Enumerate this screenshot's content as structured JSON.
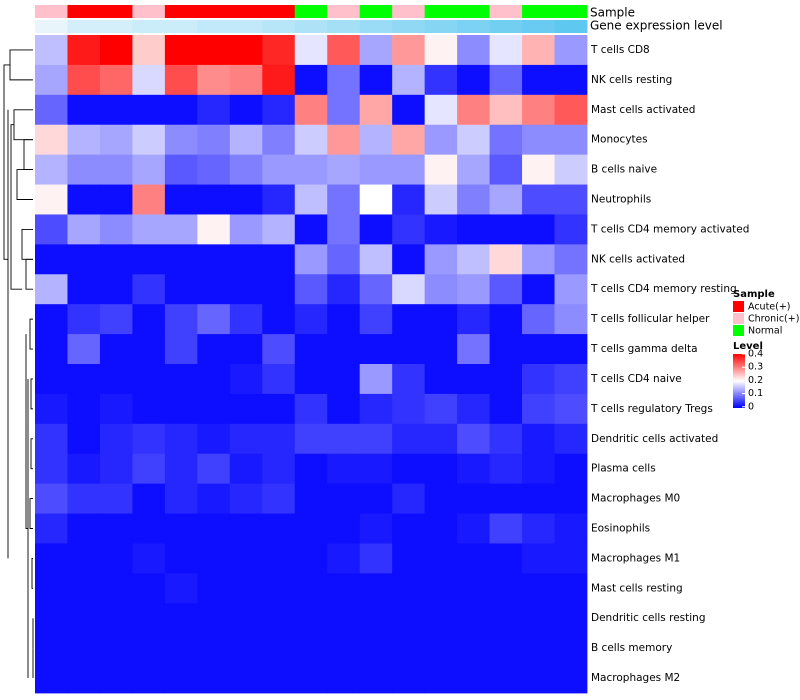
{
  "chart_data": {
    "type": "heatmap",
    "rows": [
      "T cells CD8",
      "NK cells resting",
      "Mast cells activated",
      "Monocytes",
      "B cells naive",
      "Neutrophils",
      "T cells CD4 memory activated",
      "NK cells activated",
      "T cells CD4 memory resting",
      "T cells follicular helper",
      "T cells gamma delta",
      "T cells CD4 naive",
      "T cells regulatory  Tregs",
      "Dendritic cells activated",
      "Plasma cells",
      "Macrophages M0",
      "Eosinophils",
      "Macrophages M1",
      "Mast cells resting",
      "Dendritic cells resting",
      "B cells memory",
      "Macrophages M2"
    ],
    "sample_groups": [
      "Chronic(+)",
      "Acute(+)",
      "Acute(+)",
      "Chronic(+)",
      "Acute(+)",
      "Acute(+)",
      "Acute(+)",
      "Acute(+)",
      "Normal",
      "Chronic(+)",
      "Normal",
      "Chronic(+)",
      "Normal",
      "Normal",
      "Chronic(+)",
      "Normal",
      "Normal"
    ],
    "expression_level_track": [
      0.1,
      0.12,
      0.12,
      0.13,
      0.13,
      0.14,
      0.14,
      0.15,
      0.16,
      0.17,
      0.18,
      0.19,
      0.2,
      0.21,
      0.22,
      0.23,
      0.24
    ],
    "values": [
      [
        0.15,
        0.38,
        0.4,
        0.24,
        0.4,
        0.4,
        0.4,
        0.37,
        0.18,
        0.33,
        0.13,
        0.28,
        0.21,
        0.11,
        0.18,
        0.26,
        0.12
      ],
      [
        0.13,
        0.34,
        0.32,
        0.17,
        0.34,
        0.29,
        0.3,
        0.38,
        0.01,
        0.09,
        0.01,
        0.14,
        0.04,
        0.01,
        0.08,
        0.01,
        0.01
      ],
      [
        0.08,
        0.01,
        0.01,
        0.01,
        0.01,
        0.03,
        0.01,
        0.03,
        0.3,
        0.09,
        0.27,
        0.01,
        0.18,
        0.3,
        0.25,
        0.3,
        0.33
      ],
      [
        0.23,
        0.14,
        0.13,
        0.16,
        0.11,
        0.1,
        0.14,
        0.1,
        0.16,
        0.28,
        0.14,
        0.27,
        0.12,
        0.16,
        0.09,
        0.11,
        0.11
      ],
      [
        0.14,
        0.11,
        0.11,
        0.13,
        0.07,
        0.08,
        0.1,
        0.12,
        0.12,
        0.13,
        0.12,
        0.12,
        0.21,
        0.13,
        0.07,
        0.21,
        0.16
      ],
      [
        0.21,
        0.01,
        0.01,
        0.3,
        0.01,
        0.01,
        0.01,
        0.03,
        0.15,
        0.09,
        0.2,
        0.03,
        0.16,
        0.1,
        0.13,
        0.06,
        0.06
      ],
      [
        0.06,
        0.13,
        0.11,
        0.13,
        0.13,
        0.21,
        0.12,
        0.14,
        0.01,
        0.09,
        0.01,
        0.04,
        0.02,
        0.01,
        0.01,
        0.01,
        0.04
      ],
      [
        0.01,
        0.01,
        0.01,
        0.01,
        0.01,
        0.01,
        0.01,
        0.01,
        0.12,
        0.08,
        0.15,
        0.01,
        0.12,
        0.15,
        0.23,
        0.12,
        0.09
      ],
      [
        0.14,
        0.01,
        0.01,
        0.04,
        0.01,
        0.01,
        0.01,
        0.01,
        0.07,
        0.03,
        0.08,
        0.17,
        0.11,
        0.12,
        0.07,
        0.01,
        0.12
      ],
      [
        0.01,
        0.04,
        0.05,
        0.01,
        0.05,
        0.08,
        0.04,
        0.01,
        0.03,
        0.01,
        0.05,
        0.01,
        0.01,
        0.03,
        0.01,
        0.08,
        0.11
      ],
      [
        0.01,
        0.08,
        0.01,
        0.01,
        0.05,
        0.01,
        0.01,
        0.06,
        0.01,
        0.01,
        0.01,
        0.01,
        0.01,
        0.09,
        0.01,
        0.01,
        0.01
      ],
      [
        0.01,
        0.01,
        0.01,
        0.01,
        0.01,
        0.01,
        0.02,
        0.04,
        0.01,
        0.01,
        0.12,
        0.04,
        0.01,
        0.01,
        0.01,
        0.04,
        0.05
      ],
      [
        0.02,
        0.01,
        0.02,
        0.01,
        0.01,
        0.01,
        0.01,
        0.01,
        0.04,
        0.01,
        0.03,
        0.04,
        0.05,
        0.03,
        0.01,
        0.05,
        0.06
      ],
      [
        0.04,
        0.01,
        0.03,
        0.04,
        0.03,
        0.02,
        0.03,
        0.03,
        0.05,
        0.05,
        0.05,
        0.03,
        0.03,
        0.06,
        0.04,
        0.02,
        0.03
      ],
      [
        0.04,
        0.02,
        0.03,
        0.05,
        0.03,
        0.05,
        0.02,
        0.03,
        0.01,
        0.02,
        0.02,
        0.01,
        0.01,
        0.02,
        0.03,
        0.02,
        0.01
      ],
      [
        0.06,
        0.04,
        0.04,
        0.01,
        0.03,
        0.02,
        0.03,
        0.04,
        0.01,
        0.01,
        0.01,
        0.03,
        0.01,
        0.01,
        0.01,
        0.01,
        0.01
      ],
      [
        0.03,
        0.01,
        0.01,
        0.01,
        0.01,
        0.01,
        0.01,
        0.01,
        0.01,
        0.01,
        0.02,
        0.01,
        0.01,
        0.02,
        0.05,
        0.03,
        0.02
      ],
      [
        0.01,
        0.01,
        0.01,
        0.02,
        0.01,
        0.01,
        0.01,
        0.01,
        0.01,
        0.02,
        0.04,
        0.01,
        0.01,
        0.01,
        0.01,
        0.02,
        0.02
      ],
      [
        0.01,
        0.01,
        0.01,
        0.01,
        0.02,
        0.01,
        0.01,
        0.01,
        0.01,
        0.01,
        0.01,
        0.01,
        0.01,
        0.01,
        0.01,
        0.01,
        0.01
      ],
      [
        0.01,
        0.01,
        0.01,
        0.01,
        0.01,
        0.01,
        0.01,
        0.01,
        0.01,
        0.01,
        0.01,
        0.01,
        0.01,
        0.01,
        0.01,
        0.01,
        0.01
      ],
      [
        0.01,
        0.01,
        0.01,
        0.01,
        0.01,
        0.01,
        0.01,
        0.01,
        0.01,
        0.01,
        0.01,
        0.01,
        0.01,
        0.01,
        0.01,
        0.01,
        0.01
      ],
      [
        0.01,
        0.01,
        0.01,
        0.01,
        0.01,
        0.01,
        0.01,
        0.01,
        0.01,
        0.01,
        0.01,
        0.01,
        0.01,
        0.01,
        0.01,
        0.01,
        0.01
      ]
    ],
    "track_labels": {
      "sample": "Sample",
      "expression": "Gene expression level"
    },
    "legend": {
      "sample_title": "Sample",
      "sample_entries": [
        {
          "label": "Acute(+)",
          "color": "#ff0000"
        },
        {
          "label": "Chronic(+)",
          "color": "#ffc0cb"
        },
        {
          "label": "Normal",
          "color": "#00ff00"
        }
      ],
      "level_title": "Level",
      "level_ticks": [
        "0.4",
        "0.3",
        "0.2",
        "0.1",
        "0"
      ],
      "level_range": [
        0,
        0.4
      ]
    },
    "colors": {
      "low": "#0000ff",
      "mid": "#ffffff",
      "high": "#ff0000"
    }
  }
}
